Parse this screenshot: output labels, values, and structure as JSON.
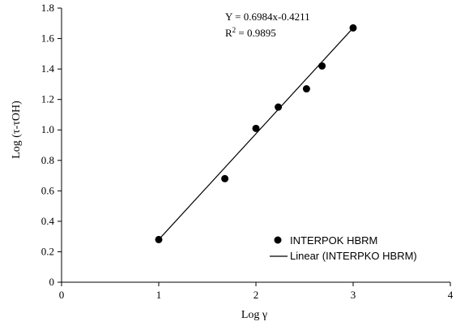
{
  "chart_data": {
    "type": "scatter",
    "xlabel": "Log γ",
    "ylabel": "Log (τ-τOH)",
    "xlim": [
      0,
      4
    ],
    "ylim": [
      0,
      1.8
    ],
    "xticks": [
      "0",
      "1",
      "2",
      "3",
      "4"
    ],
    "yticks": [
      "0",
      "0.2",
      "0.4",
      "0.6",
      "0.8",
      "1.0",
      "1.2",
      "1.4",
      "1.6",
      "1.8"
    ],
    "series": [
      {
        "name": "INTERPOK HBRM",
        "kind": "scatter",
        "points": [
          {
            "x": 1.0,
            "y": 0.28
          },
          {
            "x": 1.68,
            "y": 0.68
          },
          {
            "x": 2.0,
            "y": 1.01
          },
          {
            "x": 2.23,
            "y": 1.15
          },
          {
            "x": 2.52,
            "y": 1.27
          },
          {
            "x": 2.68,
            "y": 1.42
          },
          {
            "x": 3.0,
            "y": 1.67
          }
        ]
      },
      {
        "name": "Linear (INTERPKO HBRM)",
        "kind": "line",
        "points": [
          {
            "x": 1.0,
            "y": 0.28
          },
          {
            "x": 3.0,
            "y": 1.67
          }
        ]
      }
    ],
    "annotations": {
      "equation": "Y = 0.6984x-0.4211",
      "r2_prefix": "R",
      "r2_sup": "2",
      "r2_value": " = 0.9895"
    },
    "legend": {
      "placement": "bottom-right",
      "items": [
        "INTERPOK HBRM",
        "Linear (INTERPKO HBRM)"
      ]
    },
    "grid": false
  }
}
